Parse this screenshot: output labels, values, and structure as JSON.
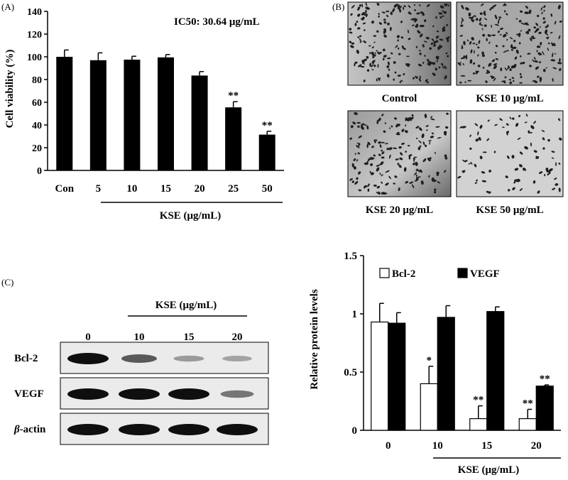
{
  "panels": {
    "a_label": "(A)",
    "b_label": "(B)",
    "c_label": "(C)"
  },
  "chart_a": {
    "type": "bar",
    "ylabel": "Cell viability (%)",
    "xlabel": "KSE (μg/mL)",
    "annotation": "IC50: 30.64 μg/mL",
    "ylim": [
      0,
      140
    ],
    "yticks": [
      0,
      20,
      40,
      60,
      80,
      100,
      120,
      140
    ],
    "categories": [
      "Con",
      "5",
      "10",
      "15",
      "20",
      "25",
      "50"
    ],
    "values": [
      100,
      97,
      97.5,
      99.5,
      83.5,
      55.5,
      31.5
    ],
    "errors": [
      6,
      6.5,
      3,
      2.5,
      3.5,
      5,
      3
    ],
    "significance": [
      "",
      "",
      "",
      "",
      "",
      "**",
      "**"
    ],
    "bar_color": "#000000"
  },
  "images_b": {
    "items": [
      {
        "label": "Control",
        "density": "high"
      },
      {
        "label": "KSE 10 μg/mL",
        "density": "high"
      },
      {
        "label": "KSE 20 μg/mL",
        "density": "medium"
      },
      {
        "label": "KSE 50 μg/mL",
        "density": "low"
      }
    ]
  },
  "blot_c": {
    "header": "KSE (μg/mL)",
    "lanes": [
      "0",
      "10",
      "15",
      "20"
    ],
    "rows": [
      {
        "label": "Bcl-2",
        "intensity": [
          1.0,
          0.6,
          0.25,
          0.2
        ]
      },
      {
        "label": "VEGF",
        "intensity": [
          1.0,
          1.0,
          1.0,
          0.45
        ]
      },
      {
        "label": "β-actin",
        "label_prefix": "β",
        "label_suffix": "-actin",
        "intensity": [
          1.0,
          1.0,
          1.0,
          1.0
        ]
      }
    ]
  },
  "chart_c": {
    "type": "bar",
    "ylabel": "Relative protein levels",
    "xlabel": "KSE (μg/mL)",
    "ylim": [
      0,
      1.5
    ],
    "yticks": [
      "0",
      "0.5",
      "1",
      "1.5"
    ],
    "categories": [
      "0",
      "10",
      "15",
      "20"
    ],
    "series": [
      {
        "name": "Bcl-2",
        "color": "#ffffff",
        "values": [
          0.93,
          0.4,
          0.1,
          0.1
        ],
        "errors": [
          0.16,
          0.15,
          0.11,
          0.08
        ],
        "significance": [
          "",
          "*",
          "**",
          "**"
        ]
      },
      {
        "name": "VEGF",
        "color": "#000000",
        "values": [
          0.92,
          0.97,
          1.02,
          0.38
        ],
        "errors": [
          0.09,
          0.1,
          0.04,
          0.01
        ],
        "significance": [
          "",
          "",
          "",
          "**"
        ]
      }
    ],
    "legend": "top"
  }
}
